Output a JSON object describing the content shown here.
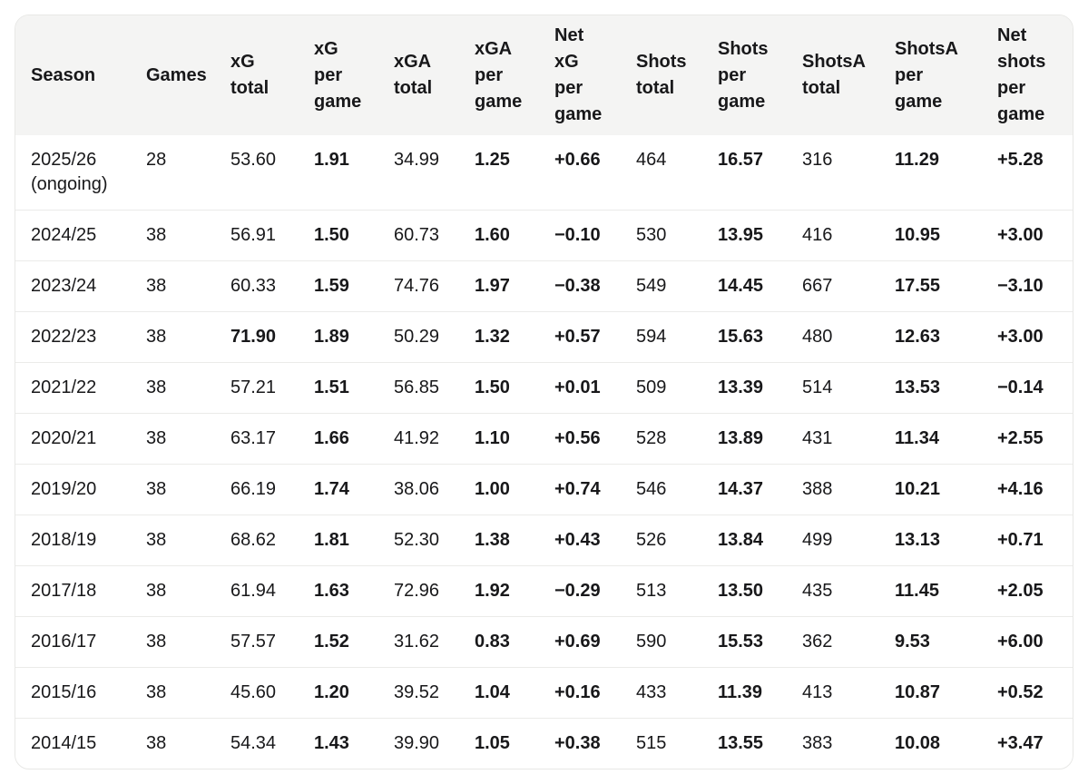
{
  "table": {
    "columns": [
      {
        "id": "season",
        "label": "Season",
        "emphasis": false
      },
      {
        "id": "games",
        "label": "Games",
        "emphasis": false
      },
      {
        "id": "xg-total",
        "label": "xG\ntotal",
        "emphasis": false
      },
      {
        "id": "xg-per-game",
        "label": "xG\nper\ngame",
        "emphasis": true
      },
      {
        "id": "xga-total",
        "label": "xGA\ntotal",
        "emphasis": false
      },
      {
        "id": "xga-per-game",
        "label": "xGA\nper\ngame",
        "emphasis": true
      },
      {
        "id": "net-xg-per-game",
        "label": "Net\nxG\nper\ngame",
        "emphasis": true
      },
      {
        "id": "shots-total",
        "label": "Shots\ntotal",
        "emphasis": false
      },
      {
        "id": "shots-per-game",
        "label": "Shots\nper\ngame",
        "emphasis": true
      },
      {
        "id": "shotsa-total",
        "label": "ShotsA\ntotal",
        "emphasis": false
      },
      {
        "id": "shotsa-per-game",
        "label": "ShotsA\nper\ngame",
        "emphasis": true
      },
      {
        "id": "net-shots-per-game",
        "label": "Net\nshots\nper\ngame",
        "emphasis": true
      }
    ],
    "rows": [
      {
        "cells": [
          "2025/26 (ongoing)",
          "28",
          "53.60",
          "1.91",
          "34.99",
          "1.25",
          "+0.66",
          "464",
          "16.57",
          "316",
          "11.29",
          "+5.28"
        ]
      },
      {
        "cells": [
          "2024/25",
          "38",
          "56.91",
          "1.50",
          "60.73",
          "1.60",
          "−0.10",
          "530",
          "13.95",
          "416",
          "10.95",
          "+3.00"
        ]
      },
      {
        "cells": [
          "2023/24",
          "38",
          "60.33",
          "1.59",
          "74.76",
          "1.97",
          "−0.38",
          "549",
          "14.45",
          "667",
          "17.55",
          "−3.10"
        ]
      },
      {
        "cells": [
          "2022/23",
          "38",
          "71.90",
          "1.89",
          "50.29",
          "1.32",
          "+0.57",
          "594",
          "15.63",
          "480",
          "12.63",
          "+3.00"
        ],
        "bold_cells": [
          2
        ]
      },
      {
        "cells": [
          "2021/22",
          "38",
          "57.21",
          "1.51",
          "56.85",
          "1.50",
          "+0.01",
          "509",
          "13.39",
          "514",
          "13.53",
          "−0.14"
        ]
      },
      {
        "cells": [
          "2020/21",
          "38",
          "63.17",
          "1.66",
          "41.92",
          "1.10",
          "+0.56",
          "528",
          "13.89",
          "431",
          "11.34",
          "+2.55"
        ]
      },
      {
        "cells": [
          "2019/20",
          "38",
          "66.19",
          "1.74",
          "38.06",
          "1.00",
          "+0.74",
          "546",
          "14.37",
          "388",
          "10.21",
          "+4.16"
        ]
      },
      {
        "cells": [
          "2018/19",
          "38",
          "68.62",
          "1.81",
          "52.30",
          "1.38",
          "+0.43",
          "526",
          "13.84",
          "499",
          "13.13",
          "+0.71"
        ]
      },
      {
        "cells": [
          "2017/18",
          "38",
          "61.94",
          "1.63",
          "72.96",
          "1.92",
          "−0.29",
          "513",
          "13.50",
          "435",
          "11.45",
          "+2.05"
        ]
      },
      {
        "cells": [
          "2016/17",
          "38",
          "57.57",
          "1.52",
          "31.62",
          "0.83",
          "+0.69",
          "590",
          "15.53",
          "362",
          "9.53",
          "+6.00"
        ]
      },
      {
        "cells": [
          "2015/16",
          "38",
          "45.60",
          "1.20",
          "39.52",
          "1.04",
          "+0.16",
          "433",
          "11.39",
          "413",
          "10.87",
          "+0.52"
        ]
      },
      {
        "cells": [
          "2014/15",
          "38",
          "54.34",
          "1.43",
          "39.90",
          "1.05",
          "+0.38",
          "515",
          "13.55",
          "383",
          "10.08",
          "+3.47"
        ]
      }
    ]
  },
  "colors": {
    "header_bg": "#f4f4f3",
    "card_border": "#e8e8e6",
    "row_separator": "#ebebe9",
    "text": "#18181a"
  }
}
